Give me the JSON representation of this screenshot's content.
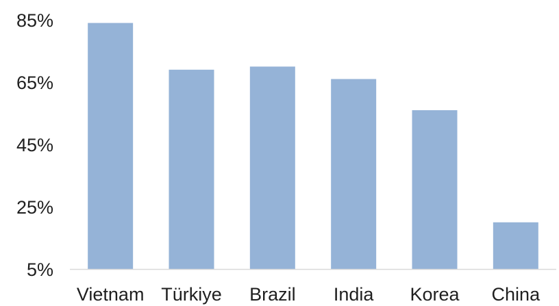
{
  "chart_data": {
    "type": "bar",
    "categories": [
      "Vietnam",
      "Türkiye",
      "Brazil",
      "India",
      "Korea",
      "China"
    ],
    "values": [
      84,
      69,
      70,
      66,
      56,
      20
    ],
    "ylim": [
      5,
      85
    ],
    "yticks": [
      5,
      25,
      45,
      65,
      85
    ],
    "ytick_labels": [
      "5%",
      "25%",
      "45%",
      "65%",
      "85%"
    ],
    "bar_color": "#95b3d7",
    "axis_color": "#d9d9d9",
    "grid": false,
    "legend": "none"
  }
}
